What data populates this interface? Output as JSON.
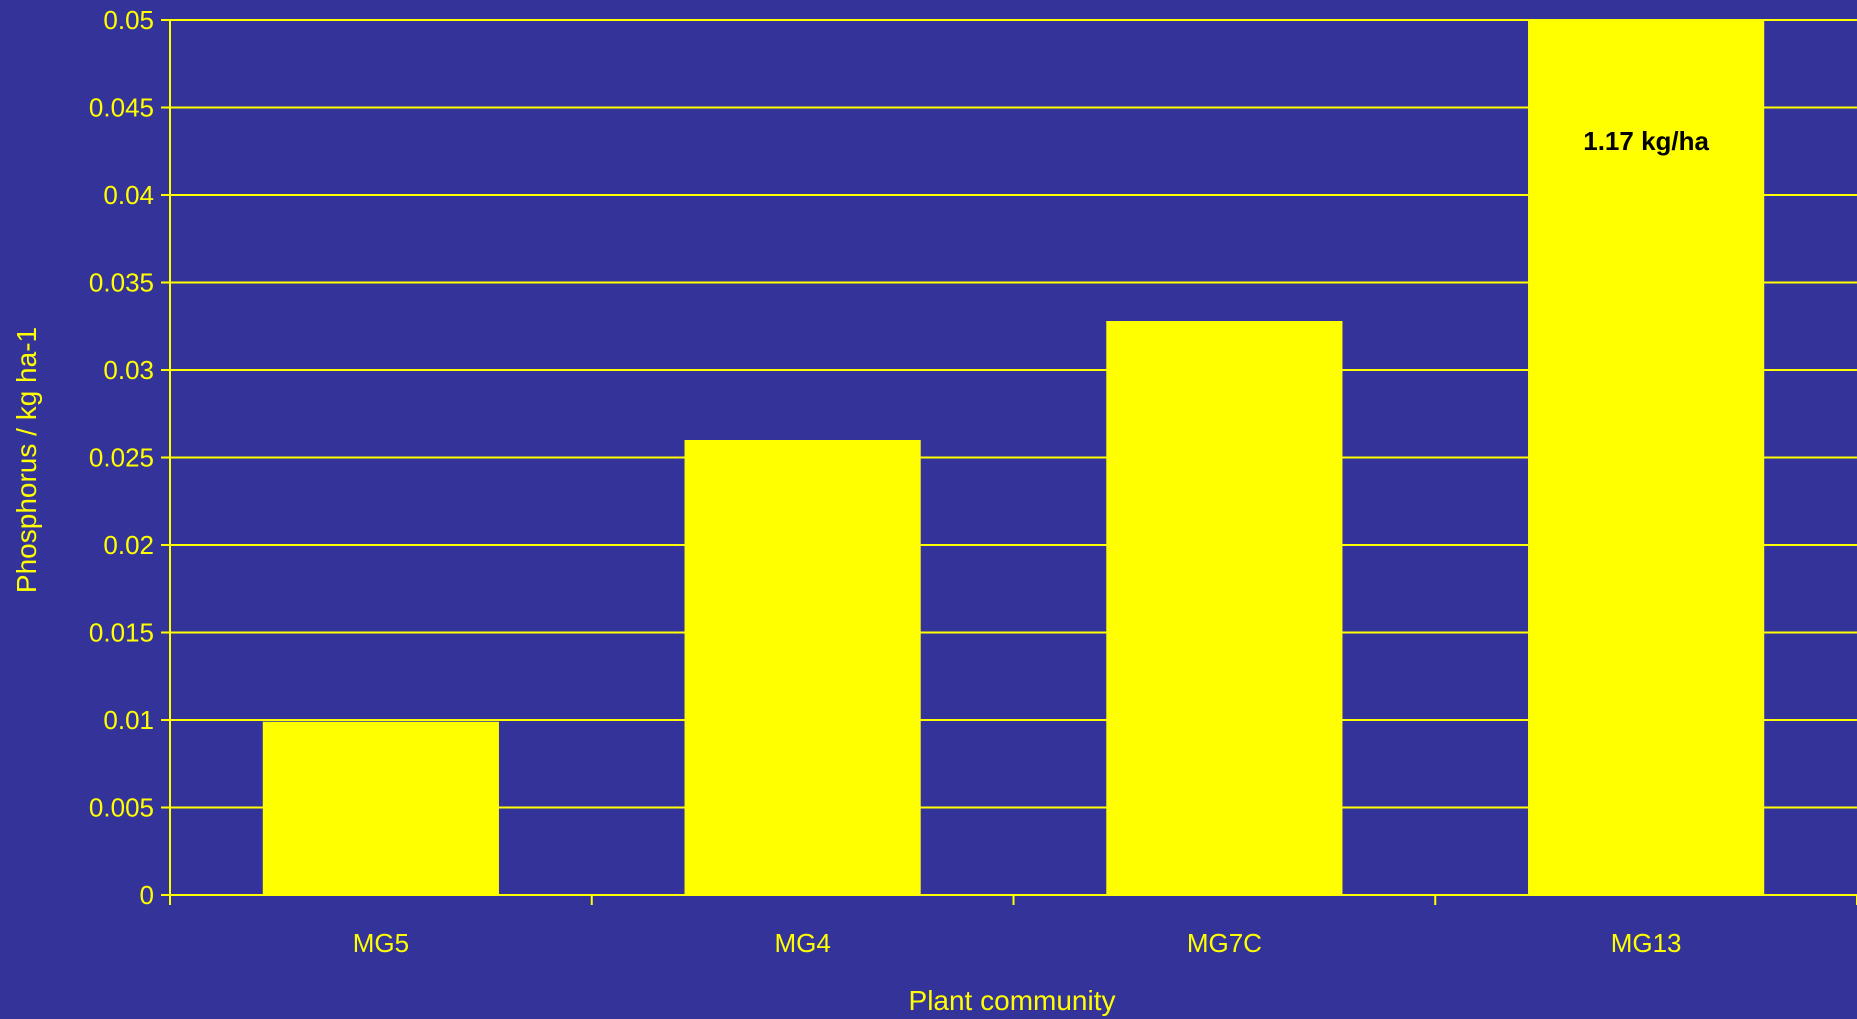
{
  "chart_data": {
    "type": "bar",
    "categories": [
      "MG5",
      "MG4",
      "MG7C",
      "MG13"
    ],
    "values": [
      0.0099,
      0.026,
      0.0328,
      0.05
    ],
    "xlabel": "Plant community",
    "ylabel": "Phosphorus / kg ha-1",
    "ylim": [
      0,
      0.05
    ],
    "yticks": [
      "0",
      "0.005",
      "0.01",
      "0.015",
      "0.02",
      "0.025",
      "0.03",
      "0.035",
      "0.04",
      "0.045",
      "0.05"
    ],
    "annotations": [
      {
        "category": "MG13",
        "text": "1.17 kg/ha"
      }
    ],
    "grid": true,
    "legend": "none",
    "colors": {
      "background": "#333399",
      "bar": "#FFFF00",
      "axis": "#FFFF00",
      "text": "#FFFF00",
      "annotation_text": "#000000"
    }
  }
}
